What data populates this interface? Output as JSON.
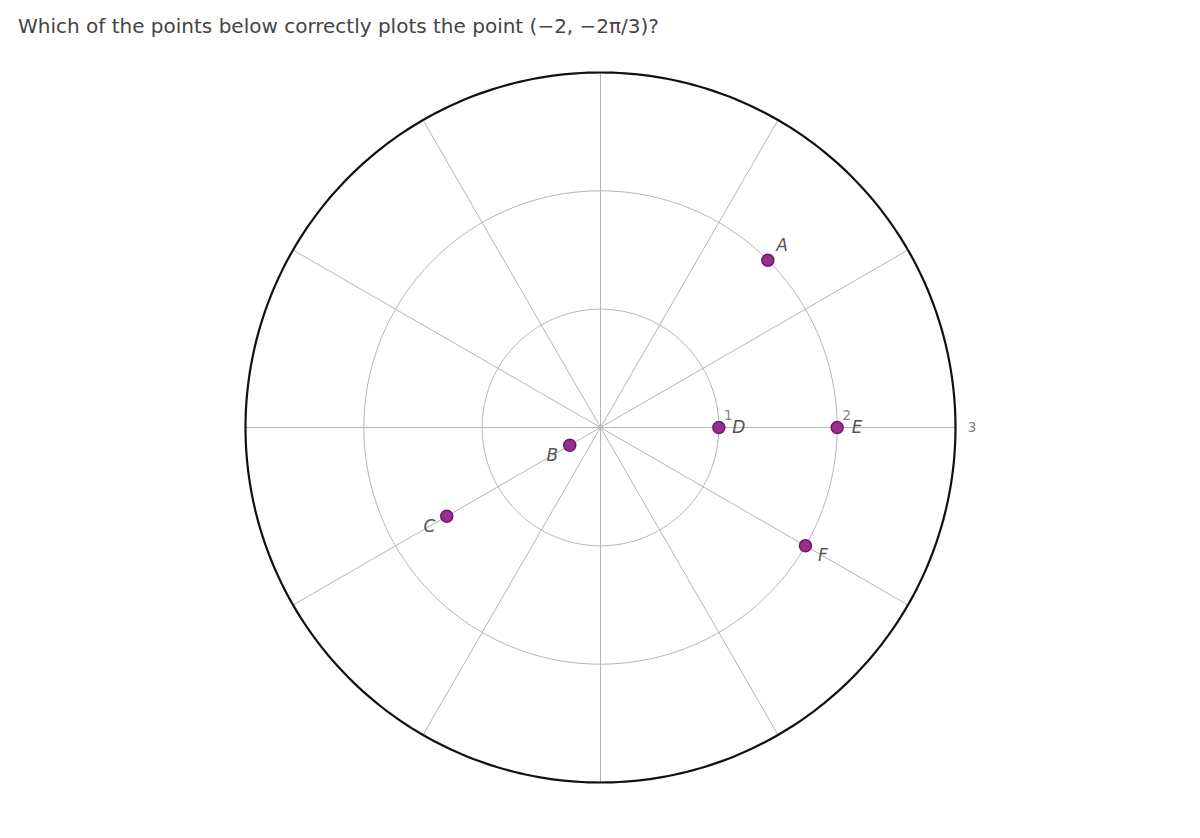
{
  "chart_data": {
    "type": "polar_scatter",
    "title": "Which of the points below correctly plots the point (−2, −2π/3)?",
    "categories": [
      "A",
      "B",
      "C",
      "D",
      "E",
      "F"
    ],
    "r": [
      2.0,
      0.3,
      1.5,
      1.0,
      2.0,
      2.0
    ],
    "theta": [
      45,
      210,
      210,
      0,
      0,
      -30
    ],
    "rlim": [
      0,
      3
    ],
    "rticks": [
      1,
      2,
      3
    ],
    "thetaticks": [
      0,
      30,
      60,
      90,
      120,
      150,
      180,
      210,
      240,
      270,
      300,
      330
    ],
    "grid": true,
    "color": "#9b2d8f"
  }
}
